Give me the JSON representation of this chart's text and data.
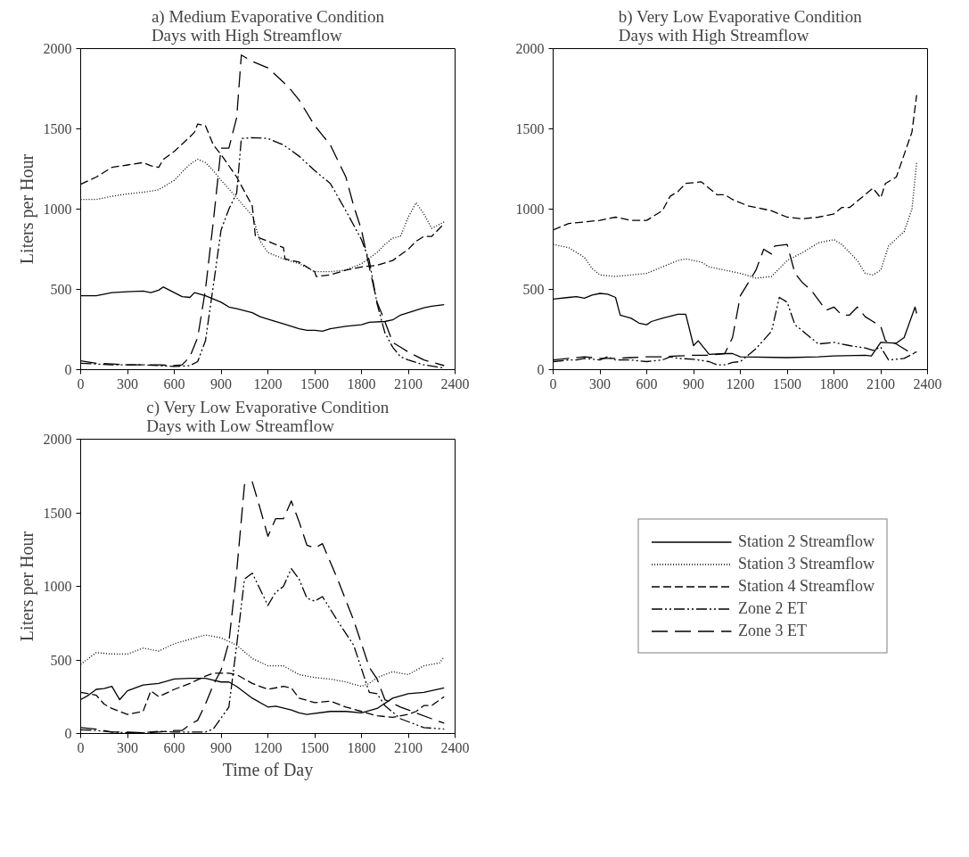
{
  "chart_data": [
    {
      "type": "line",
      "title": "a) Medium Evaporative Condition Days with High Streamflow",
      "ylabel": "Liters per Hour",
      "xlim": [
        0,
        2400
      ],
      "xticks": [
        0,
        300,
        600,
        900,
        1200,
        1500,
        1800,
        2100,
        2400
      ],
      "ylim": [
        0,
        2000
      ],
      "yticks": [
        0,
        500,
        1000,
        1500,
        2000
      ],
      "grid": false,
      "legend": false,
      "series": [
        {
          "color": "#000000",
          "line_style": "solid",
          "x": [
            0,
            100,
            200,
            300,
            400,
            450,
            500,
            530,
            600,
            650,
            700,
            730,
            800,
            900,
            950,
            1000,
            1100,
            1150,
            1200,
            1300,
            1400,
            1450,
            1500,
            1550,
            1600,
            1700,
            1800,
            1850,
            1950,
            2000,
            2050,
            2100,
            2200,
            2250,
            2330
          ],
          "values": [
            460,
            460,
            480,
            485,
            490,
            480,
            495,
            515,
            480,
            455,
            450,
            480,
            460,
            420,
            390,
            380,
            355,
            330,
            315,
            285,
            255,
            245,
            245,
            240,
            255,
            270,
            280,
            295,
            300,
            310,
            340,
            355,
            385,
            395,
            405
          ]
        },
        {
          "color": "#000000",
          "line_style": "dotted",
          "x": [
            0,
            100,
            200,
            300,
            400,
            500,
            600,
            700,
            750,
            800,
            850,
            900,
            1000,
            1100,
            1150,
            1200,
            1300,
            1400,
            1500,
            1600,
            1700,
            1800,
            1900,
            1950,
            2000,
            2050,
            2100,
            2150,
            2200,
            2250,
            2330
          ],
          "values": [
            1060,
            1060,
            1080,
            1095,
            1105,
            1120,
            1180,
            1280,
            1310,
            1290,
            1240,
            1180,
            1070,
            960,
            800,
            730,
            690,
            660,
            610,
            610,
            620,
            660,
            730,
            780,
            820,
            830,
            950,
            1040,
            970,
            880,
            920
          ]
        },
        {
          "color": "#000000",
          "line_style": "dashed",
          "x": [
            0,
            100,
            200,
            300,
            400,
            450,
            500,
            530,
            600,
            700,
            730,
            750,
            800,
            850,
            900,
            1000,
            1100,
            1120,
            1200,
            1300,
            1310,
            1400,
            1500,
            1510,
            1600,
            1700,
            1800,
            1900,
            2000,
            2100,
            2150,
            2200,
            2250,
            2330
          ],
          "values": [
            1155,
            1200,
            1260,
            1275,
            1290,
            1270,
            1260,
            1310,
            1360,
            1450,
            1480,
            1530,
            1520,
            1400,
            1340,
            1200,
            1020,
            830,
            800,
            760,
            690,
            670,
            610,
            580,
            590,
            620,
            640,
            650,
            680,
            750,
            800,
            830,
            830,
            910
          ]
        },
        {
          "color": "#000000",
          "line_style": "dashdot",
          "x": [
            0,
            100,
            200,
            300,
            400,
            500,
            600,
            700,
            750,
            800,
            850,
            900,
            950,
            1000,
            1030,
            1100,
            1200,
            1300,
            1400,
            1500,
            1600,
            1700,
            1800,
            1850,
            1900,
            1950,
            2000,
            2050,
            2100,
            2200,
            2330
          ],
          "values": [
            40,
            35,
            30,
            30,
            30,
            25,
            20,
            25,
            50,
            180,
            520,
            870,
            1000,
            1100,
            1440,
            1445,
            1440,
            1400,
            1330,
            1240,
            1160,
            990,
            810,
            680,
            410,
            230,
            140,
            80,
            60,
            30,
            10
          ]
        },
        {
          "color": "#000000",
          "line_style": "longdash",
          "x": [
            0,
            100,
            200,
            300,
            400,
            500,
            600,
            650,
            700,
            750,
            800,
            850,
            900,
            950,
            1000,
            1030,
            1100,
            1200,
            1300,
            1350,
            1400,
            1500,
            1550,
            1600,
            1700,
            1750,
            1800,
            1850,
            1900,
            1950,
            2000,
            2050,
            2100,
            2200,
            2330
          ],
          "values": [
            55,
            40,
            35,
            30,
            30,
            30,
            25,
            30,
            80,
            200,
            500,
            920,
            1380,
            1380,
            1570,
            1960,
            1920,
            1880,
            1790,
            1740,
            1680,
            1520,
            1460,
            1400,
            1200,
            1020,
            870,
            640,
            420,
            300,
            170,
            140,
            110,
            60,
            25
          ]
        }
      ]
    },
    {
      "type": "line",
      "title": "b) Very Low Evaporative Condition Days with High Streamflow",
      "xlim": [
        0,
        2400
      ],
      "xticks": [
        0,
        300,
        600,
        900,
        1200,
        1500,
        1800,
        2100,
        2400
      ],
      "ylim": [
        0,
        2000
      ],
      "yticks": [
        0,
        500,
        1000,
        1500,
        2000
      ],
      "grid": false,
      "legend": false,
      "series": [
        {
          "color": "#000000",
          "line_style": "solid",
          "x": [
            0,
            100,
            150,
            200,
            250,
            300,
            350,
            400,
            430,
            500,
            550,
            600,
            630,
            700,
            800,
            850,
            900,
            930,
            1000,
            1100,
            1150,
            1200,
            1500,
            1700,
            1800,
            2000,
            2040,
            2100,
            2200,
            2250,
            2320,
            2330
          ],
          "values": [
            440,
            450,
            455,
            445,
            465,
            475,
            470,
            450,
            340,
            320,
            290,
            280,
            300,
            320,
            345,
            345,
            150,
            180,
            95,
            100,
            100,
            80,
            75,
            80,
            85,
            90,
            85,
            170,
            165,
            200,
            390,
            350
          ]
        },
        {
          "color": "#000000",
          "line_style": "dotted",
          "x": [
            0,
            100,
            200,
            250,
            300,
            400,
            500,
            600,
            700,
            800,
            850,
            950,
            1000,
            1100,
            1200,
            1300,
            1400,
            1500,
            1600,
            1700,
            1800,
            1850,
            1950,
            2000,
            2050,
            2100,
            2150,
            2250,
            2300,
            2330
          ],
          "values": [
            780,
            760,
            700,
            630,
            590,
            580,
            590,
            600,
            640,
            680,
            690,
            670,
            640,
            620,
            600,
            570,
            580,
            680,
            730,
            790,
            810,
            780,
            680,
            600,
            590,
            620,
            770,
            860,
            1000,
            1290
          ]
        },
        {
          "color": "#000000",
          "line_style": "dashed",
          "x": [
            0,
            50,
            100,
            200,
            300,
            400,
            500,
            600,
            700,
            750,
            800,
            850,
            950,
            1050,
            1100,
            1150,
            1250,
            1350,
            1400,
            1500,
            1600,
            1700,
            1800,
            1850,
            1900,
            2000,
            2050,
            2100,
            2130,
            2200,
            2300,
            2330
          ],
          "values": [
            870,
            890,
            910,
            920,
            930,
            950,
            930,
            930,
            990,
            1080,
            1110,
            1160,
            1170,
            1090,
            1090,
            1060,
            1020,
            1000,
            990,
            950,
            940,
            950,
            970,
            1010,
            1010,
            1090,
            1130,
            1070,
            1160,
            1200,
            1480,
            1710
          ]
        },
        {
          "color": "#000000",
          "line_style": "dashdot",
          "x": [
            0,
            100,
            150,
            200,
            300,
            350,
            400,
            500,
            600,
            700,
            750,
            800,
            900,
            1000,
            1050,
            1100,
            1150,
            1200,
            1300,
            1400,
            1450,
            1500,
            1550,
            1600,
            1700,
            1800,
            1900,
            2000,
            2050,
            2100,
            2150,
            2250,
            2330
          ],
          "values": [
            50,
            60,
            60,
            70,
            60,
            80,
            60,
            60,
            50,
            60,
            80,
            70,
            65,
            50,
            30,
            30,
            45,
            50,
            130,
            240,
            450,
            420,
            280,
            240,
            160,
            170,
            150,
            135,
            120,
            140,
            60,
            70,
            110
          ]
        },
        {
          "color": "#000000",
          "line_style": "longdash",
          "x": [
            0,
            100,
            200,
            300,
            400,
            500,
            600,
            700,
            800,
            900,
            1000,
            1100,
            1150,
            1200,
            1300,
            1350,
            1400,
            1420,
            1500,
            1550,
            1600,
            1650,
            1750,
            1800,
            1850,
            1900,
            1950,
            2000,
            2050,
            2100,
            2130,
            2200,
            2300,
            2330
          ],
          "values": [
            60,
            70,
            80,
            70,
            70,
            75,
            80,
            80,
            85,
            90,
            90,
            100,
            200,
            460,
            620,
            750,
            720,
            770,
            780,
            600,
            540,
            500,
            370,
            390,
            340,
            340,
            390,
            330,
            300,
            270,
            180,
            160,
            100,
            110
          ]
        }
      ]
    },
    {
      "type": "line",
      "title": "c) Very Low Evaporative Condition Days with Low Streamflow",
      "xlabel": "Time of Day",
      "ylabel": "Liters per Hour",
      "xlim": [
        0,
        2400
      ],
      "xticks": [
        0,
        300,
        600,
        900,
        1200,
        1500,
        1800,
        2100,
        2400
      ],
      "ylim": [
        0,
        2000
      ],
      "yticks": [
        0,
        500,
        1000,
        1500,
        2000
      ],
      "grid": false,
      "legend": "right",
      "series": [
        {
          "name": "Station 2 Streamflow",
          "color": "#000000",
          "line_style": "solid",
          "x": [
            0,
            50,
            100,
            150,
            200,
            250,
            300,
            400,
            500,
            600,
            700,
            800,
            900,
            950,
            1000,
            1100,
            1200,
            1250,
            1350,
            1400,
            1450,
            1600,
            1700,
            1800,
            1900,
            2000,
            2100,
            2200,
            2330
          ],
          "values": [
            230,
            260,
            300,
            305,
            320,
            230,
            290,
            330,
            340,
            370,
            375,
            375,
            350,
            350,
            320,
            240,
            180,
            185,
            160,
            140,
            130,
            150,
            150,
            140,
            170,
            240,
            270,
            280,
            310
          ]
        },
        {
          "name": "Station 3 Streamflow",
          "color": "#000000",
          "line_style": "dotted",
          "x": [
            0,
            50,
            100,
            200,
            300,
            350,
            400,
            500,
            600,
            700,
            800,
            900,
            1000,
            1100,
            1200,
            1300,
            1400,
            1500,
            1600,
            1700,
            1800,
            1850,
            1900,
            2000,
            2100,
            2200,
            2300,
            2330
          ],
          "values": [
            470,
            510,
            550,
            540,
            540,
            560,
            580,
            560,
            610,
            640,
            670,
            650,
            600,
            510,
            460,
            460,
            400,
            380,
            370,
            350,
            320,
            340,
            380,
            420,
            400,
            460,
            480,
            520
          ]
        },
        {
          "name": "Station 4 Streamflow",
          "color": "#000000",
          "line_style": "dashed",
          "x": [
            0,
            100,
            150,
            200,
            300,
            400,
            450,
            500,
            600,
            700,
            800,
            850,
            950,
            1000,
            1100,
            1200,
            1300,
            1350,
            1400,
            1500,
            1600,
            1700,
            1800,
            1900,
            2000,
            2100,
            2150,
            2200,
            2250,
            2330
          ],
          "values": [
            280,
            260,
            200,
            170,
            130,
            150,
            290,
            250,
            300,
            340,
            390,
            410,
            410,
            400,
            340,
            300,
            320,
            310,
            240,
            210,
            220,
            180,
            150,
            120,
            110,
            130,
            150,
            190,
            190,
            250
          ]
        },
        {
          "name": "Zone 2 ET",
          "color": "#000000",
          "line_style": "dashdot",
          "x": [
            0,
            100,
            200,
            300,
            400,
            500,
            600,
            700,
            800,
            850,
            950,
            1000,
            1050,
            1100,
            1200,
            1250,
            1300,
            1350,
            1400,
            1450,
            1500,
            1550,
            1650,
            1750,
            1850,
            1900,
            1950,
            2050,
            2150,
            2200,
            2330
          ],
          "values": [
            25,
            20,
            10,
            5,
            5,
            15,
            10,
            10,
            10,
            30,
            180,
            600,
            1050,
            1090,
            870,
            960,
            1000,
            1120,
            1050,
            920,
            900,
            930,
            760,
            600,
            280,
            270,
            190,
            100,
            60,
            40,
            30
          ]
        },
        {
          "name": "Zone 3 ET",
          "color": "#000000",
          "line_style": "longdash",
          "x": [
            0,
            100,
            200,
            300,
            400,
            500,
            600,
            650,
            700,
            750,
            800,
            850,
            900,
            950,
            1000,
            1050,
            1100,
            1150,
            1200,
            1250,
            1300,
            1350,
            1400,
            1450,
            1500,
            1550,
            1650,
            1750,
            1850,
            1900,
            1950,
            2050,
            2150,
            2250,
            2330
          ],
          "values": [
            40,
            30,
            10,
            10,
            5,
            10,
            20,
            20,
            60,
            90,
            200,
            330,
            430,
            620,
            1100,
            1690,
            1710,
            1530,
            1340,
            1460,
            1460,
            1580,
            1440,
            1280,
            1260,
            1290,
            1040,
            770,
            450,
            370,
            230,
            180,
            140,
            100,
            70
          ]
        }
      ]
    }
  ]
}
